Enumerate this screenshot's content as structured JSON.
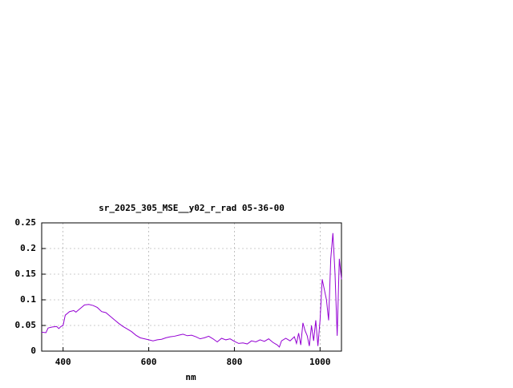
{
  "chart_data": {
    "type": "line",
    "title": "sr_2025_305_MSE__y02_r_rad 05-36-00",
    "x_label": "nm",
    "x": [
      350,
      360,
      365,
      375,
      385,
      390,
      395,
      400,
      405,
      415,
      425,
      430,
      440,
      450,
      460,
      470,
      480,
      490,
      500,
      510,
      520,
      530,
      540,
      550,
      560,
      570,
      580,
      590,
      600,
      610,
      620,
      630,
      640,
      650,
      660,
      670,
      680,
      690,
      700,
      710,
      720,
      730,
      740,
      750,
      760,
      770,
      780,
      790,
      800,
      810,
      820,
      830,
      840,
      850,
      860,
      870,
      880,
      890,
      900,
      905,
      910,
      920,
      930,
      940,
      945,
      950,
      955,
      960,
      965,
      970,
      975,
      980,
      985,
      990,
      995,
      1000,
      1005,
      1010,
      1015,
      1020,
      1025,
      1030,
      1035,
      1040,
      1045,
      1050
    ],
    "series": [
      {
        "color": "#9400d3",
        "values": [
          0.037,
          0.036,
          0.045,
          0.047,
          0.048,
          0.044,
          0.048,
          0.05,
          0.07,
          0.077,
          0.079,
          0.076,
          0.083,
          0.09,
          0.091,
          0.089,
          0.085,
          0.077,
          0.075,
          0.068,
          0.061,
          0.054,
          0.048,
          0.043,
          0.038,
          0.031,
          0.026,
          0.024,
          0.022,
          0.02,
          0.022,
          0.023,
          0.026,
          0.028,
          0.029,
          0.031,
          0.033,
          0.03,
          0.031,
          0.028,
          0.024,
          0.026,
          0.029,
          0.024,
          0.018,
          0.025,
          0.022,
          0.024,
          0.019,
          0.015,
          0.016,
          0.014,
          0.02,
          0.018,
          0.022,
          0.019,
          0.024,
          0.017,
          0.012,
          0.008,
          0.02,
          0.025,
          0.02,
          0.028,
          0.015,
          0.035,
          0.012,
          0.055,
          0.04,
          0.03,
          0.01,
          0.05,
          0.02,
          0.06,
          0.01,
          0.06,
          0.14,
          0.12,
          0.1,
          0.06,
          0.18,
          0.23,
          0.15,
          0.03,
          0.18,
          0.14
        ]
      }
    ],
    "xlim": [
      350,
      1050
    ],
    "xticks": [
      400,
      600,
      800,
      1000
    ],
    "ylim": [
      0,
      0.25
    ],
    "yticks": [
      0,
      0.05,
      0.1,
      0.15,
      0.2,
      0.25
    ],
    "grid": true
  }
}
